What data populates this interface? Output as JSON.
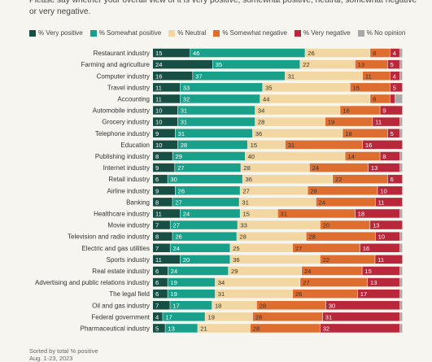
{
  "question": "Please say whether your overall view of it is very positive, somewhat positive, neutral, somewhat negative or very negative.",
  "footer": {
    "sort_note": "Sorted by total % positive",
    "date": "Aug. 1-23, 2023"
  },
  "colors": {
    "very_positive": "#174f45",
    "somewhat_positive": "#18a08a",
    "neutral": "#f2d7a2",
    "somewhat_negative": "#de6e2f",
    "very_negative": "#b8283a",
    "no_opinion": "#a8a8a8"
  },
  "chart_data": {
    "type": "bar",
    "orientation": "horizontal",
    "stacked": true,
    "xlim": [
      0,
      100
    ],
    "legend_position": "top",
    "categories": [
      "Restaurant industry",
      "Farming and agriculture",
      "Computer industry",
      "Travel industry",
      "Accounting",
      "Automobile industry",
      "Grocery industry",
      "Telephone industry",
      "Education",
      "Publishing industry",
      "Internet industry",
      "Retail industry",
      "Airline industry",
      "Banking",
      "Healthcare industry",
      "Movie industry",
      "Television and radio industry",
      "Electric and gas utilities",
      "Sports industry",
      "Real estate industry",
      "Advertising and public relations industry",
      "The legal field",
      "Oil and gas industry",
      "Federal government",
      "Pharmaceutical industry"
    ],
    "series": [
      {
        "name": "% Very positive",
        "values": [
          15,
          24,
          16,
          11,
          11,
          10,
          10,
          9,
          10,
          8,
          9,
          6,
          9,
          8,
          11,
          7,
          8,
          7,
          11,
          6,
          6,
          6,
          7,
          4,
          5
        ]
      },
      {
        "name": "% Somewhat positive",
        "values": [
          46,
          35,
          37,
          33,
          32,
          31,
          31,
          31,
          28,
          29,
          27,
          30,
          26,
          27,
          24,
          27,
          26,
          24,
          20,
          24,
          19,
          19,
          17,
          17,
          13
        ]
      },
      {
        "name": "% Neutral",
        "values": [
          26,
          22,
          31,
          35,
          44,
          34,
          28,
          36,
          15,
          40,
          28,
          36,
          27,
          31,
          15,
          33,
          28,
          25,
          36,
          29,
          34,
          31,
          18,
          19,
          21
        ]
      },
      {
        "name": "% Somewhat negative",
        "values": [
          8,
          13,
          11,
          16,
          8,
          16,
          19,
          18,
          31,
          14,
          24,
          22,
          28,
          24,
          31,
          20,
          28,
          27,
          22,
          24,
          27,
          26,
          28,
          28,
          28
        ]
      },
      {
        "name": "% Very negative",
        "values": [
          4,
          5,
          4,
          5,
          2,
          9,
          11,
          5,
          16,
          8,
          13,
          6,
          10,
          11,
          18,
          13,
          10,
          16,
          11,
          15,
          13,
          17,
          30,
          31,
          32
        ]
      },
      {
        "name": "% No opinion",
        "values": [
          1,
          1,
          1,
          0,
          3,
          0,
          1,
          1,
          0,
          1,
          1,
          0,
          0,
          0,
          1,
          0,
          1,
          1,
          0,
          1,
          1,
          1,
          1,
          1,
          1
        ]
      }
    ],
    "labels": [
      [
        "15",
        "46",
        "26",
        "8",
        "4",
        ""
      ],
      [
        "24",
        "35",
        "22",
        "13",
        "5",
        ""
      ],
      [
        "16",
        "37",
        "31",
        "11",
        "4",
        ""
      ],
      [
        "11",
        "33",
        "35",
        "16",
        "5",
        ""
      ],
      [
        "11",
        "32",
        "44",
        "8",
        "",
        ""
      ],
      [
        "10",
        "31",
        "34",
        "16",
        "9",
        ""
      ],
      [
        "10",
        "31",
        "28",
        "19",
        "11",
        ""
      ],
      [
        "9",
        "31",
        "36",
        "18",
        "5",
        ""
      ],
      [
        "10",
        "28",
        "15",
        "31",
        "16",
        ""
      ],
      [
        "8",
        "29",
        "40",
        "14",
        "8",
        ""
      ],
      [
        "9",
        "27",
        "28",
        "24",
        "13",
        ""
      ],
      [
        "6",
        "30",
        "36",
        "22",
        "6",
        ""
      ],
      [
        "9",
        "26",
        "27",
        "28",
        "10",
        ""
      ],
      [
        "8",
        "27",
        "31",
        "24",
        "11",
        ""
      ],
      [
        "11",
        "24",
        "15",
        "31",
        "18",
        ""
      ],
      [
        "7",
        "27",
        "33",
        "20",
        "13",
        ""
      ],
      [
        "8",
        "26",
        "28",
        "28",
        "10",
        ""
      ],
      [
        "7",
        "24",
        "25",
        "27",
        "16",
        ""
      ],
      [
        "11",
        "20",
        "36",
        "22",
        "11",
        ""
      ],
      [
        "6",
        "24",
        "29",
        "24",
        "15",
        ""
      ],
      [
        "6",
        "19",
        "34",
        "27",
        "13",
        ""
      ],
      [
        "6",
        "19",
        "31",
        "26",
        "17",
        ""
      ],
      [
        "7",
        "17",
        "18",
        "28",
        "30",
        ""
      ],
      [
        "4",
        "17",
        "19",
        "28",
        "31",
        ""
      ],
      [
        "5",
        "13",
        "21",
        "28",
        "32",
        ""
      ]
    ]
  }
}
